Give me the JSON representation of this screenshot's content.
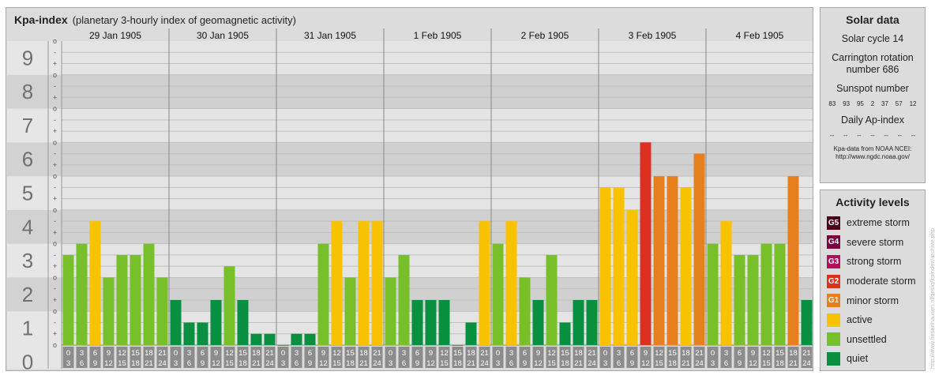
{
  "header": {
    "title": "Kpa-index",
    "subtitle": "(planetary 3-hourly index of geomagnetic activity)"
  },
  "chart_data": {
    "type": "bar",
    "title": "Kpa-index",
    "subtitle": "(planetary 3-hourly index of geomagnetic activity)",
    "ylim": [
      0,
      9
    ],
    "yticks": [
      "0",
      "1",
      "2",
      "3",
      "4",
      "5",
      "6",
      "7",
      "8",
      "9"
    ],
    "minor_ticks": [
      "o",
      "+",
      "-"
    ],
    "days": [
      "29 Jan 1905",
      "30 Jan 1905",
      "31 Jan 1905",
      "1 Feb 1905",
      "2 Feb 1905",
      "3 Feb 1905",
      "4 Feb 1905"
    ],
    "hour_starts": [
      "0",
      "3",
      "6",
      "9",
      "12",
      "15",
      "18",
      "21"
    ],
    "hour_ends": [
      "3",
      "6",
      "9",
      "12",
      "15",
      "18",
      "21",
      "24"
    ],
    "values": [
      [
        2.667,
        3.0,
        3.667,
        2.0,
        2.667,
        2.667,
        3.0,
        2.0
      ],
      [
        1.333,
        0.667,
        0.667,
        1.333,
        2.333,
        1.333,
        0.333,
        0.333
      ],
      [
        0.0,
        0.333,
        0.333,
        3.0,
        3.667,
        2.0,
        3.667,
        3.667
      ],
      [
        2.0,
        2.667,
        1.333,
        1.333,
        1.333,
        0.0,
        0.667,
        3.667
      ],
      [
        3.0,
        3.667,
        2.0,
        1.333,
        2.667,
        0.667,
        1.333,
        1.333
      ],
      [
        4.667,
        4.667,
        4.0,
        6.0,
        5.0,
        5.0,
        4.667,
        5.667
      ],
      [
        3.0,
        3.667,
        2.667,
        2.667,
        3.0,
        3.0,
        5.0,
        1.333
      ]
    ]
  },
  "solar": {
    "title": "Solar data",
    "cycle": "Solar cycle 14",
    "carrington": "Carrington rotation number 686",
    "sunspot_title": "Sunspot number",
    "sunspots": [
      "83",
      "93",
      "95",
      "2",
      "37",
      "57",
      "12"
    ],
    "ap_title": "Daily Ap-index",
    "ap_values": [
      "--",
      "--",
      "--",
      "--",
      "--",
      "--",
      "--"
    ],
    "credit_line1": "Kpa-data from NOAA NCEI:",
    "credit_line2": "http://www.ngdc.noaa.gov/"
  },
  "activity": {
    "title": "Activity levels",
    "items": [
      {
        "code": "G5",
        "label": "extreme storm",
        "color": "#4d0019"
      },
      {
        "code": "G4",
        "label": "severe storm",
        "color": "#7a0040"
      },
      {
        "code": "G3",
        "label": "strong storm",
        "color": "#b0105a"
      },
      {
        "code": "G2",
        "label": "moderate storm",
        "color": "#dc3020"
      },
      {
        "code": "G1",
        "label": "minor storm",
        "color": "#e67f1d"
      },
      {
        "code": "",
        "label": "active",
        "color": "#f8c200"
      },
      {
        "code": "",
        "label": "unsettled",
        "color": "#78c02a"
      },
      {
        "code": "",
        "label": "quiet",
        "color": "#089040"
      }
    ]
  },
  "side_credit": "http://www.tiesenhausen.nl/gnsiq/kpindex/archive.php"
}
